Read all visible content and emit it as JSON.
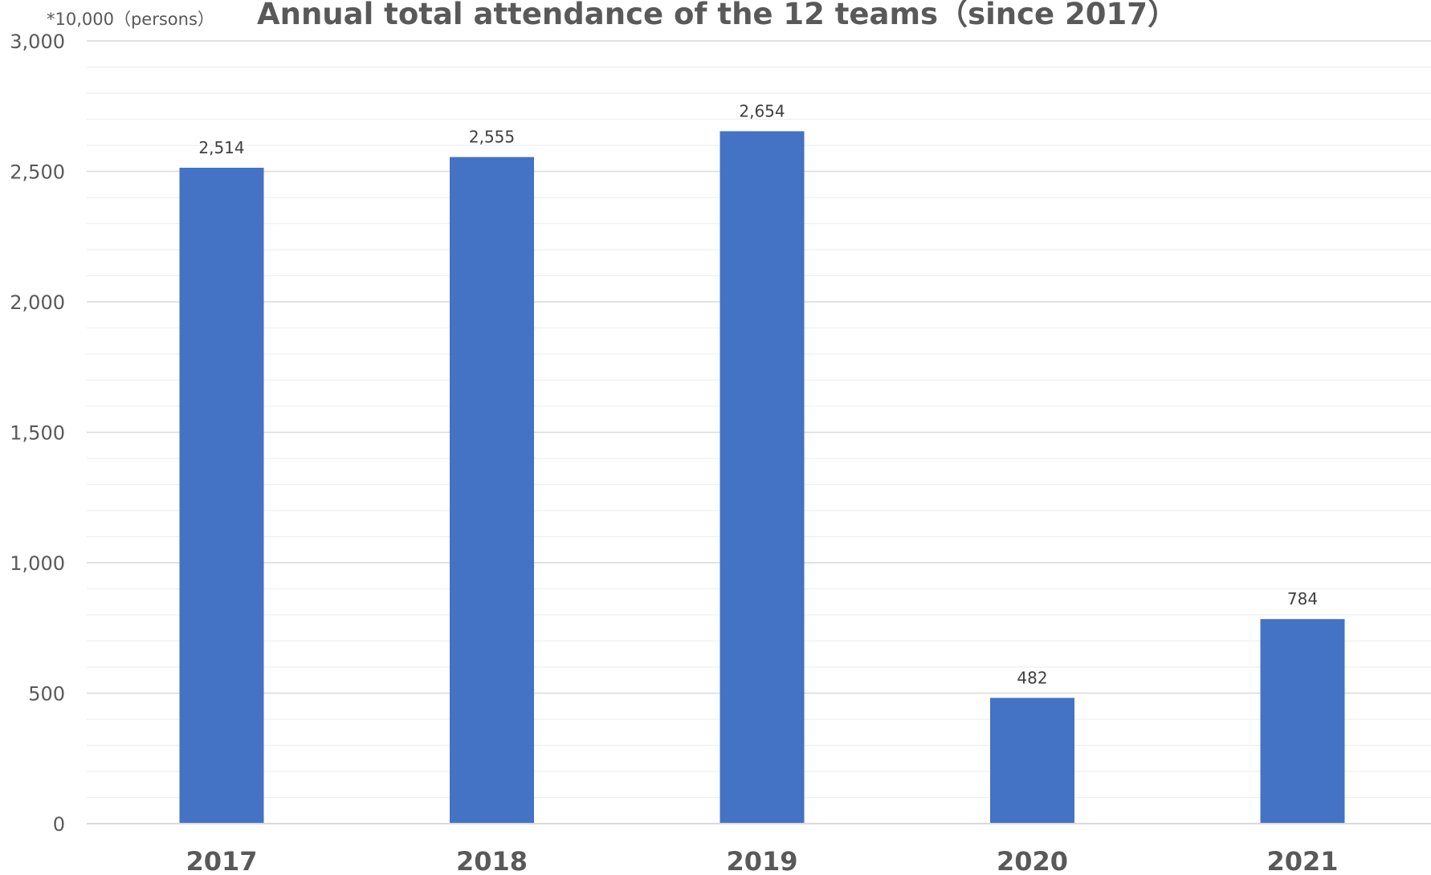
{
  "chart_data": {
    "type": "bar",
    "title": "Annual total attendance of the 12 teams（since 2017）",
    "unit_label": "*10,000（persons）",
    "xlabel": "",
    "ylabel": "",
    "categories": [
      "2017",
      "2018",
      "2019",
      "2020",
      "2021"
    ],
    "values": [
      2514,
      2555,
      2654,
      482,
      784
    ],
    "data_labels": [
      "2,514",
      "2,555",
      "2,654",
      "482",
      "784"
    ],
    "ylim": [
      0,
      3000
    ],
    "yticks": [
      0,
      500,
      1000,
      1500,
      2000,
      2500,
      3000
    ],
    "ytick_labels": [
      "0",
      "500",
      "1,000",
      "1,500",
      "2,000",
      "2,500",
      "3,000"
    ],
    "minor_gridlines": true,
    "minor_step": 100,
    "grid": true,
    "legend": "none",
    "colors": {
      "bar": "#4472C4",
      "major_grid": "#D9D9D9",
      "minor_grid": "#EFEFEF",
      "axis_text": "#595959",
      "data_label": "#404040"
    }
  }
}
